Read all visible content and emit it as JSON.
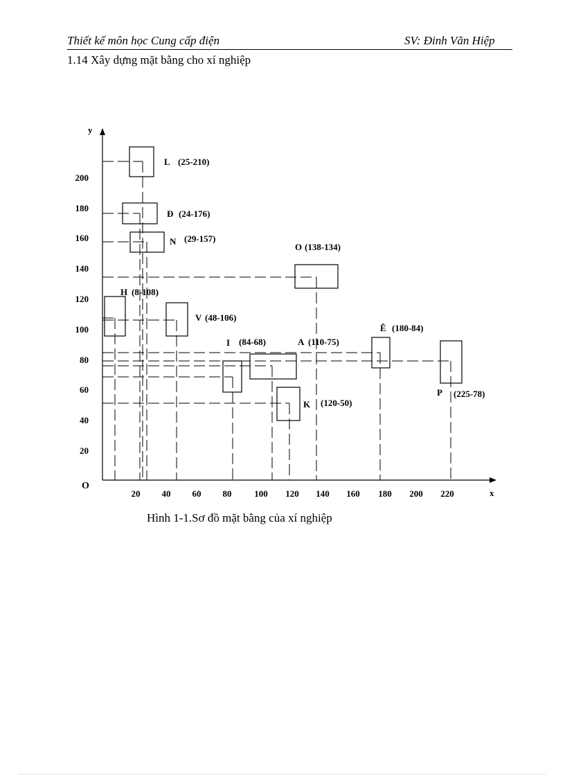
{
  "header": {
    "left": "Thiết kế môn học Cung cấp điện",
    "right": "SV: Đinh Văn Hiệp"
  },
  "section_title": "1.14 Xây dựng mặt bằng cho xí nghiệp",
  "caption": "Hình 1-1.Sơ đồ mặt bằng của xí nghiệp",
  "diagram": {
    "origin_label": "O",
    "x_axis_label": "x",
    "y_axis_label": "y",
    "x_ticks": [
      "20",
      "40",
      "60",
      "80",
      "100",
      "120",
      "140",
      "160",
      "180",
      "200",
      "220"
    ],
    "y_ticks": [
      "200",
      "180",
      "160",
      "140",
      "120",
      "100",
      "80",
      "60",
      "40",
      "20"
    ],
    "buildings": [
      {
        "id": "L",
        "name": "L",
        "coords": "(25-210)"
      },
      {
        "id": "D",
        "name": "Đ",
        "coords": "(24-176)"
      },
      {
        "id": "N",
        "name": "N",
        "coords": "(29-157)"
      },
      {
        "id": "O",
        "name": "O",
        "coords": "(138-134)"
      },
      {
        "id": "H",
        "name": "H",
        "coords": "(8-108)"
      },
      {
        "id": "V",
        "name": "V",
        "coords": "(48-106)"
      },
      {
        "id": "E",
        "name": "Ê",
        "coords": "(180-84)"
      },
      {
        "id": "I",
        "name": "I",
        "coords": "(84-68)"
      },
      {
        "id": "A",
        "name": "A",
        "coords": "(110-75)"
      },
      {
        "id": "K",
        "name": "K",
        "coords": "(120-50)"
      },
      {
        "id": "P",
        "name": "P",
        "coords": "(225-78)"
      }
    ]
  }
}
